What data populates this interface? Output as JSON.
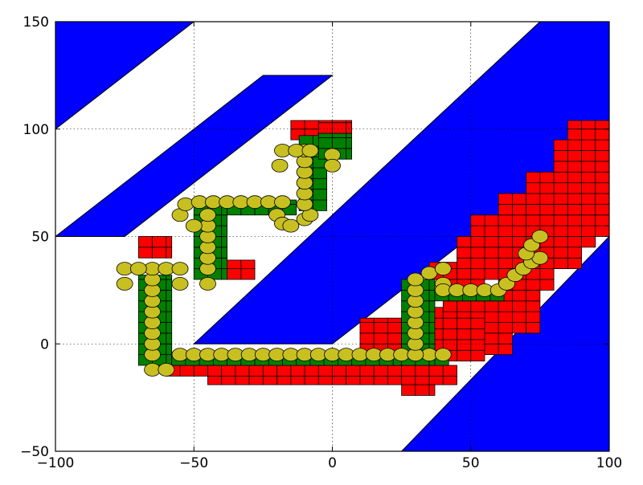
{
  "chart_data": {
    "type": "scatter",
    "title": "",
    "xlabel": "",
    "ylabel": "",
    "xlim": [
      -100,
      100
    ],
    "ylim": [
      -50,
      150
    ],
    "grid": true,
    "x_ticks": [
      -100,
      -50,
      0,
      50,
      100
    ],
    "y_ticks": [
      -50,
      0,
      50,
      100,
      150
    ],
    "x_tick_labels": [
      "−100",
      "−50",
      "0",
      "50",
      "100"
    ],
    "y_tick_labels": [
      "−50",
      "0",
      "50",
      "100",
      "150"
    ],
    "colors": {
      "obstacle": "#0000ff",
      "explored": "#ff0000",
      "path_cells": "#008000",
      "trajectory": "#c8c020"
    },
    "obstacles": [
      {
        "name": "obstacle-top-left",
        "points": [
          [
            -100,
            100
          ],
          [
            -100,
            150
          ],
          [
            -50,
            150
          ]
        ]
      },
      {
        "name": "obstacle-upper-band",
        "points": [
          [
            -100,
            50
          ],
          [
            -75,
            50
          ],
          [
            0,
            125
          ],
          [
            -25,
            125
          ]
        ]
      },
      {
        "name": "obstacle-middle-band",
        "points": [
          [
            -50,
            0
          ],
          [
            0,
            0
          ],
          [
            100,
            100
          ],
          [
            100,
            150
          ],
          [
            75,
            150
          ]
        ]
      },
      {
        "name": "obstacle-bottom-right",
        "points": [
          [
            25,
            -50
          ],
          [
            100,
            -50
          ],
          [
            100,
            50
          ]
        ]
      }
    ],
    "explored_cells": [
      {
        "x": -70,
        "y": 40,
        "w": 12,
        "h": 10
      },
      {
        "x": -38,
        "y": 30,
        "w": 10,
        "h": 9
      },
      {
        "x": -15,
        "y": 95,
        "w": 10,
        "h": 9
      },
      {
        "x": -5,
        "y": 98,
        "w": 12,
        "h": 6
      },
      {
        "x": -60,
        "y": -15,
        "w": 105,
        "h": 5
      },
      {
        "x": -45,
        "y": -19,
        "w": 90,
        "h": 4
      },
      {
        "x": 25,
        "y": -24,
        "w": 12,
        "h": 5
      },
      {
        "x": 10,
        "y": -10,
        "w": 30,
        "h": 22
      },
      {
        "x": 35,
        "y": -8,
        "w": 20,
        "h": 25
      },
      {
        "x": 55,
        "y": -5,
        "w": 10,
        "h": 30
      },
      {
        "x": 65,
        "y": 5,
        "w": 10,
        "h": 25
      },
      {
        "x": 35,
        "y": 30,
        "w": 20,
        "h": 8
      },
      {
        "x": 45,
        "y": 30,
        "w": 35,
        "h": 20
      },
      {
        "x": 50,
        "y": 45,
        "w": 45,
        "h": 15
      },
      {
        "x": 60,
        "y": 55,
        "w": 40,
        "h": 15
      },
      {
        "x": 70,
        "y": 65,
        "w": 30,
        "h": 15
      },
      {
        "x": 80,
        "y": 80,
        "w": 20,
        "h": 15
      },
      {
        "x": 85,
        "y": 95,
        "w": 15,
        "h": 9
      },
      {
        "x": 20,
        "y": 0,
        "w": 15,
        "h": 10
      },
      {
        "x": 40,
        "y": 15,
        "w": 15,
        "h": 15
      },
      {
        "x": 60,
        "y": 25,
        "w": 20,
        "h": 10
      },
      {
        "x": 75,
        "y": 35,
        "w": 15,
        "h": 10
      },
      {
        "x": 90,
        "y": 50,
        "w": 10,
        "h": 15
      }
    ],
    "path_cells": [
      {
        "x": -70,
        "y": -10,
        "w": 12,
        "h": 42
      },
      {
        "x": -58,
        "y": -10,
        "w": 100,
        "h": 6
      },
      {
        "x": -50,
        "y": 30,
        "w": 12,
        "h": 37
      },
      {
        "x": -38,
        "y": 60,
        "w": 20,
        "h": 7
      },
      {
        "x": -18,
        "y": 60,
        "w": 5,
        "h": 7
      },
      {
        "x": -12,
        "y": 62,
        "w": 10,
        "h": 35
      },
      {
        "x": -5,
        "y": 86,
        "w": 12,
        "h": 12
      },
      {
        "x": 25,
        "y": -10,
        "w": 12,
        "h": 40
      },
      {
        "x": 37,
        "y": 20,
        "w": 25,
        "h": 5
      }
    ],
    "trajectory": [
      [
        -65,
        -12
      ],
      [
        -65,
        -5
      ],
      [
        -65,
        0
      ],
      [
        -65,
        5
      ],
      [
        -65,
        10
      ],
      [
        -65,
        15
      ],
      [
        -65,
        20
      ],
      [
        -65,
        25
      ],
      [
        -65,
        30
      ],
      [
        -65,
        35
      ],
      [
        -75,
        35
      ],
      [
        -70,
        35
      ],
      [
        -60,
        35
      ],
      [
        -55,
        35
      ],
      [
        -75,
        28
      ],
      [
        -55,
        28
      ],
      [
        -60,
        -12
      ],
      [
        -55,
        -5
      ],
      [
        -50,
        -5
      ],
      [
        -45,
        -5
      ],
      [
        -40,
        -5
      ],
      [
        -35,
        -5
      ],
      [
        -30,
        -5
      ],
      [
        -25,
        -5
      ],
      [
        -20,
        -5
      ],
      [
        -15,
        -5
      ],
      [
        -10,
        -5
      ],
      [
        -5,
        -5
      ],
      [
        0,
        -5
      ],
      [
        5,
        -5
      ],
      [
        10,
        -5
      ],
      [
        15,
        -5
      ],
      [
        20,
        -5
      ],
      [
        25,
        -5
      ],
      [
        30,
        -5
      ],
      [
        35,
        -5
      ],
      [
        40,
        -5
      ],
      [
        -45,
        28
      ],
      [
        -45,
        35
      ],
      [
        -45,
        40
      ],
      [
        -45,
        45
      ],
      [
        -45,
        50
      ],
      [
        -45,
        55
      ],
      [
        -45,
        60
      ],
      [
        -50,
        55
      ],
      [
        -55,
        60
      ],
      [
        -53,
        65
      ],
      [
        -48,
        66
      ],
      [
        -43,
        66
      ],
      [
        -38,
        66
      ],
      [
        -33,
        66
      ],
      [
        -28,
        66
      ],
      [
        -23,
        66
      ],
      [
        -18,
        66
      ],
      [
        -20,
        60
      ],
      [
        -18,
        56
      ],
      [
        -15,
        55
      ],
      [
        -10,
        58
      ],
      [
        -8,
        60
      ],
      [
        -10,
        65
      ],
      [
        -10,
        70
      ],
      [
        -10,
        75
      ],
      [
        -10,
        80
      ],
      [
        -10,
        85
      ],
      [
        -10,
        90
      ],
      [
        -18,
        90
      ],
      [
        -13,
        90
      ],
      [
        -8,
        90
      ],
      [
        -19,
        83
      ],
      [
        0,
        88
      ],
      [
        0,
        83
      ],
      [
        30,
        -5
      ],
      [
        30,
        0
      ],
      [
        30,
        5
      ],
      [
        30,
        10
      ],
      [
        30,
        15
      ],
      [
        30,
        20
      ],
      [
        30,
        25
      ],
      [
        30,
        30
      ],
      [
        35,
        33
      ],
      [
        40,
        35
      ],
      [
        40,
        28
      ],
      [
        40,
        25
      ],
      [
        45,
        25
      ],
      [
        50,
        25
      ],
      [
        55,
        25
      ],
      [
        60,
        25
      ],
      [
        63,
        28
      ],
      [
        66,
        32
      ],
      [
        69,
        35
      ],
      [
        72,
        38
      ],
      [
        75,
        40
      ],
      [
        70,
        42
      ],
      [
        72,
        46
      ],
      [
        75,
        50
      ]
    ]
  }
}
